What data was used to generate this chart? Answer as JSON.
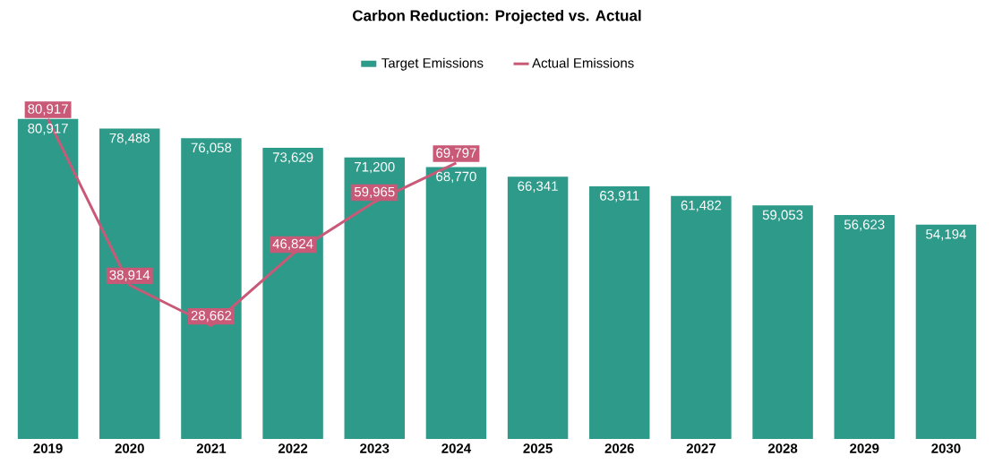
{
  "chart_data": {
    "type": "bar",
    "title": "Carbon Reduction: Projected vs. Actual",
    "categories": [
      "2019",
      "2020",
      "2021",
      "2022",
      "2023",
      "2024",
      "2025",
      "2026",
      "2027",
      "2028",
      "2029",
      "2030"
    ],
    "series": [
      {
        "name": "Target Emissions",
        "color": "#2e9a8a",
        "values": [
          80917,
          78488,
          76058,
          73629,
          71200,
          68770,
          66341,
          63911,
          61482,
          59053,
          56623,
          54194
        ],
        "value_labels": [
          "80,917",
          "78,488",
          "76,058",
          "73,629",
          "71,200",
          "68,770",
          "66,341",
          "63,911",
          "61,482",
          "59,053",
          "56,623",
          "54,194"
        ]
      },
      {
        "name": "Actual Emissions",
        "type": "line",
        "color": "#c85a78",
        "values": [
          80917,
          38914,
          28662,
          46824,
          59965,
          69797,
          null,
          null,
          null,
          null,
          null,
          null
        ],
        "value_labels": [
          "80,917",
          "38,914",
          "28,662",
          "46,824",
          "59,965",
          "69,797",
          null,
          null,
          null,
          null,
          null,
          null
        ]
      }
    ],
    "legend": "top"
  }
}
